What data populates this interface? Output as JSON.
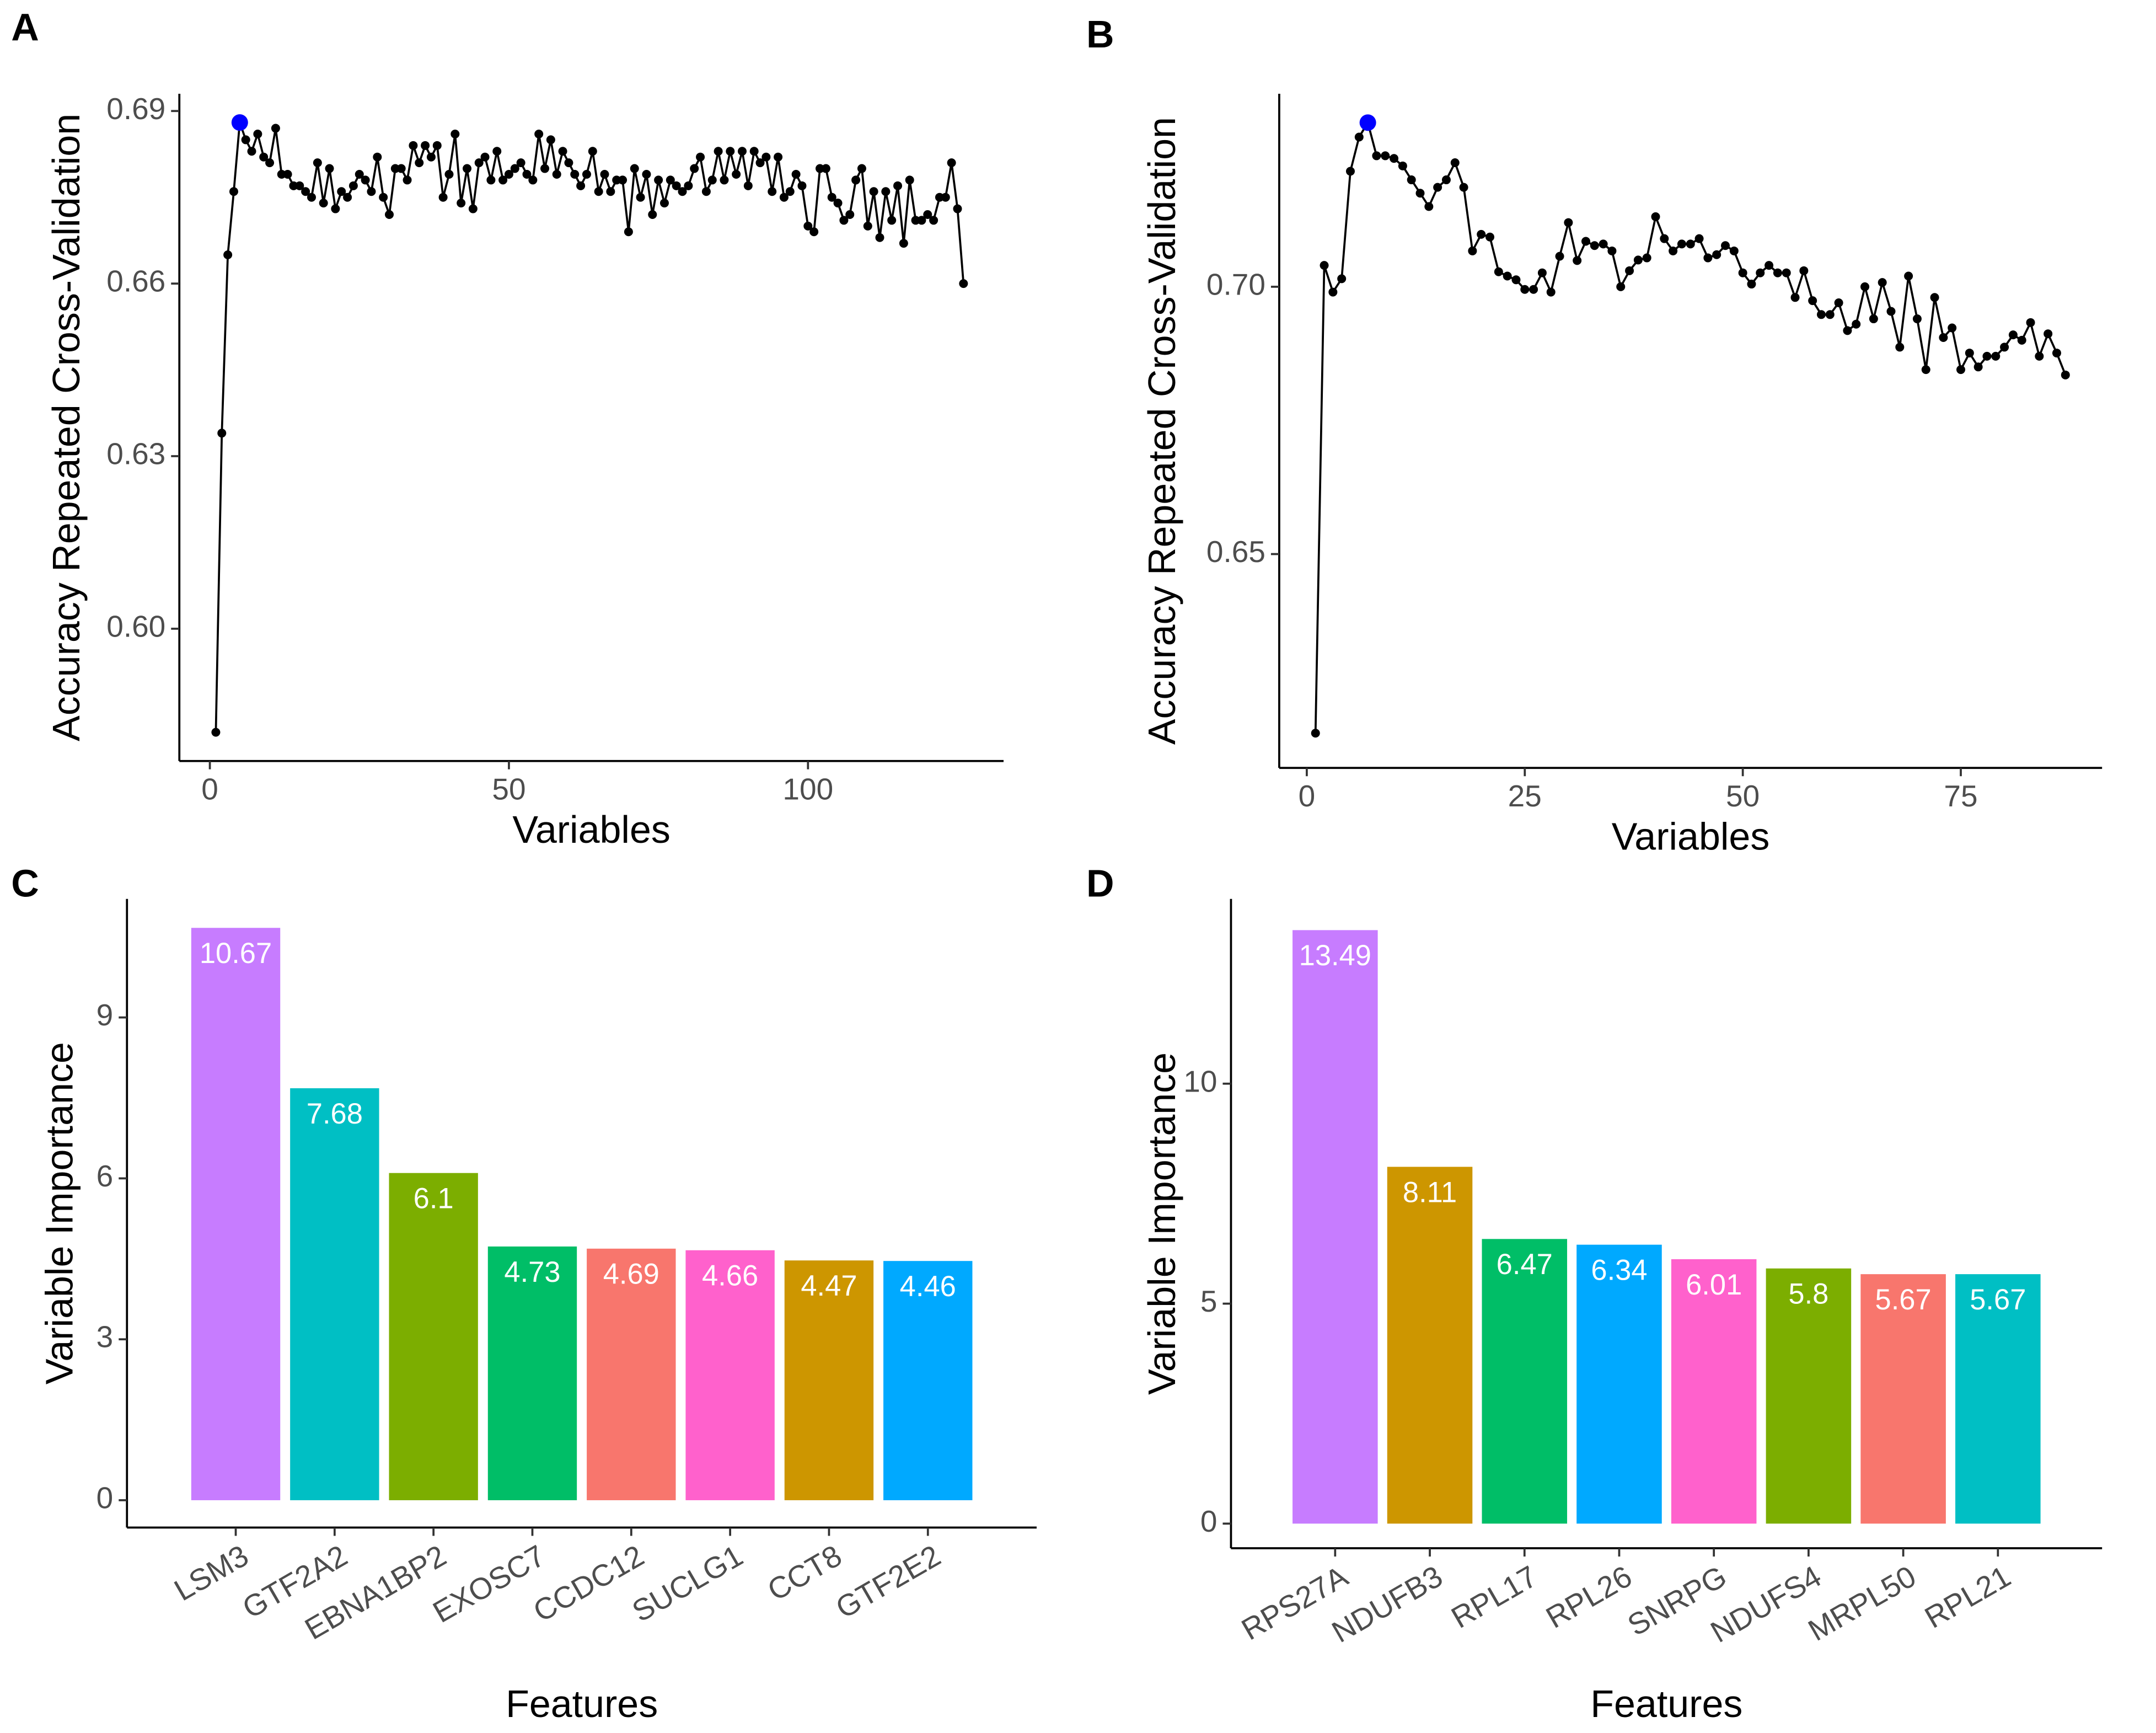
{
  "chart_data": [
    {
      "type": "line",
      "label": "A",
      "x_label": "Variables",
      "y_label": "Accuracy Repeated Cross-Validation",
      "color": "#000000",
      "highlight_color": "#0000ff",
      "x": [
        1,
        2,
        3,
        4,
        5,
        6,
        7,
        8,
        9,
        10,
        11,
        12,
        13,
        14,
        15,
        16,
        17,
        18,
        19,
        20,
        21,
        22,
        23,
        24,
        25,
        26,
        27,
        28,
        29,
        30,
        31,
        32,
        33,
        34,
        35,
        36,
        37,
        38,
        39,
        40,
        41,
        42,
        43,
        44,
        45,
        46,
        47,
        48,
        49,
        50,
        51,
        52,
        53,
        54,
        55,
        56,
        57,
        58,
        59,
        60,
        61,
        62,
        63,
        64,
        65,
        66,
        67,
        68,
        69,
        70,
        71,
        72,
        73,
        74,
        75,
        76,
        77,
        78,
        79,
        80,
        81,
        82,
        83,
        84,
        85,
        86,
        87,
        88,
        89,
        90,
        91,
        92,
        93,
        94,
        95,
        96,
        97,
        98,
        99,
        100,
        101,
        102,
        103,
        104,
        105,
        106,
        107,
        108,
        109,
        110,
        111,
        112,
        113,
        114,
        115,
        116,
        117,
        118,
        119,
        120,
        121,
        122,
        123,
        124,
        125,
        126
      ],
      "values": [
        0.582,
        0.634,
        0.665,
        0.676,
        0.688,
        0.685,
        0.683,
        0.686,
        0.682,
        0.681,
        0.687,
        0.679,
        0.679,
        0.677,
        0.677,
        0.676,
        0.675,
        0.681,
        0.674,
        0.68,
        0.673,
        0.676,
        0.675,
        0.677,
        0.679,
        0.678,
        0.676,
        0.682,
        0.675,
        0.672,
        0.68,
        0.68,
        0.678,
        0.684,
        0.681,
        0.684,
        0.682,
        0.684,
        0.675,
        0.679,
        0.686,
        0.674,
        0.68,
        0.673,
        0.681,
        0.682,
        0.678,
        0.683,
        0.678,
        0.679,
        0.68,
        0.681,
        0.679,
        0.678,
        0.686,
        0.68,
        0.685,
        0.679,
        0.683,
        0.681,
        0.679,
        0.677,
        0.679,
        0.683,
        0.676,
        0.679,
        0.676,
        0.678,
        0.678,
        0.669,
        0.68,
        0.675,
        0.679,
        0.672,
        0.678,
        0.674,
        0.678,
        0.677,
        0.676,
        0.677,
        0.68,
        0.682,
        0.676,
        0.678,
        0.683,
        0.678,
        0.683,
        0.679,
        0.683,
        0.677,
        0.683,
        0.681,
        0.682,
        0.676,
        0.682,
        0.675,
        0.676,
        0.679,
        0.677,
        0.67,
        0.669,
        0.68,
        0.68,
        0.675,
        0.674,
        0.671,
        0.672,
        0.678,
        0.68,
        0.67,
        0.676,
        0.668,
        0.676,
        0.671,
        0.677,
        0.667,
        0.678,
        0.671,
        0.671,
        0.672,
        0.671,
        0.675,
        0.675,
        0.681,
        0.673,
        0.66
      ],
      "xlim": [
        -5.1,
        132.7
      ],
      "xticks": [
        0,
        50,
        100
      ],
      "ylim": [
        0.577,
        0.693
      ],
      "yticks": [
        {
          "value": 0.6,
          "label": "0.60"
        },
        0.63,
        0.66,
        0.69
      ]
    },
    {
      "type": "line",
      "label": "B",
      "x_label": "Variables",
      "y_label": "Accuracy Repeated Cross-Validation",
      "color": "#000000",
      "highlight_color": "#0000ff",
      "x": [
        1,
        2,
        3,
        4,
        5,
        6,
        7,
        8,
        9,
        10,
        11,
        12,
        13,
        14,
        15,
        16,
        17,
        18,
        19,
        20,
        21,
        22,
        23,
        24,
        25,
        26,
        27,
        28,
        29,
        30,
        31,
        32,
        33,
        34,
        35,
        36,
        37,
        38,
        39,
        40,
        41,
        42,
        43,
        44,
        45,
        46,
        47,
        48,
        49,
        50,
        51,
        52,
        53,
        54,
        55,
        56,
        57,
        58,
        59,
        60,
        61,
        62,
        63,
        64,
        65,
        66,
        67,
        68,
        69,
        70,
        71,
        72,
        73,
        74,
        75,
        76,
        77,
        78,
        79,
        80,
        81,
        82,
        83,
        84,
        85,
        86,
        87
      ],
      "values": [
        0.6165,
        0.704,
        0.699,
        0.7015,
        0.7216,
        0.728,
        0.7307,
        0.7245,
        0.7245,
        0.724,
        0.7226,
        0.72,
        0.7175,
        0.715,
        0.7186,
        0.72,
        0.7232,
        0.7186,
        0.7067,
        0.7098,
        0.7093,
        0.7028,
        0.702,
        0.7013,
        0.6995,
        0.6995,
        0.7026,
        0.699,
        0.7057,
        0.712,
        0.7049,
        0.7085,
        0.7077,
        0.708,
        0.7067,
        0.7,
        0.703,
        0.705,
        0.7054,
        0.7131,
        0.709,
        0.7067,
        0.708,
        0.708,
        0.709,
        0.7054,
        0.706,
        0.7077,
        0.7067,
        0.7026,
        0.7005,
        0.7026,
        0.704,
        0.7026,
        0.7026,
        0.698,
        0.703,
        0.6974,
        0.6948,
        0.6948,
        0.697,
        0.6918,
        0.693,
        0.7,
        0.694,
        0.7008,
        0.6954,
        0.6887,
        0.702,
        0.694,
        0.6845,
        0.698,
        0.6905,
        0.6923,
        0.6845,
        0.6876,
        0.685,
        0.687,
        0.687,
        0.6887,
        0.691,
        0.69,
        0.6933,
        0.687,
        0.6912,
        0.6876,
        0.6835
      ],
      "xlim": [
        -3.16,
        91.2
      ],
      "xticks": [
        0,
        25,
        50,
        75
      ],
      "ylim": [
        0.61,
        0.7361
      ],
      "yticks": [
        0.65,
        {
          "value": 0.7,
          "label": "0.70"
        }
      ]
    },
    {
      "type": "bar",
      "label": "C",
      "x_label": "Features",
      "y_label": "Variable Importance",
      "categories": [
        "LSM3",
        "GTF2A2",
        "EBNA1BP2",
        "EXOSC7",
        "CCDC12",
        "SUCLG1",
        "CCT8",
        "GTF2E2"
      ],
      "values": [
        10.67,
        7.68,
        6.1,
        4.73,
        4.69,
        4.66,
        4.47,
        4.46
      ],
      "colors": [
        "#C77CFF",
        "#00BFC4",
        "#7CAE00",
        "#00BE67",
        "#F8766D",
        "#FF61CC",
        "#CD9600",
        "#00A9FF"
      ],
      "ylim": [
        -0.51,
        11.21
      ],
      "yticks": [
        0,
        3,
        6,
        9
      ]
    },
    {
      "type": "bar",
      "label": "D",
      "x_label": "Features",
      "y_label": "Variable Importance",
      "categories": [
        "RPS27A",
        "NDUFB3",
        "RPL17",
        "RPL26",
        "SNRPG",
        "NDUFS4",
        "MRPL50",
        "RPL21"
      ],
      "values": [
        13.49,
        8.11,
        6.47,
        6.34,
        6.01,
        5.8,
        5.67,
        5.67
      ],
      "colors": [
        "#C77CFF",
        "#CD9600",
        "#00BE67",
        "#00A9FF",
        "#FF61CC",
        "#7CAE00",
        "#F8766D",
        "#00BFC4"
      ],
      "ylim": [
        -0.56,
        14.2
      ],
      "yticks": [
        0,
        5,
        10
      ]
    }
  ]
}
